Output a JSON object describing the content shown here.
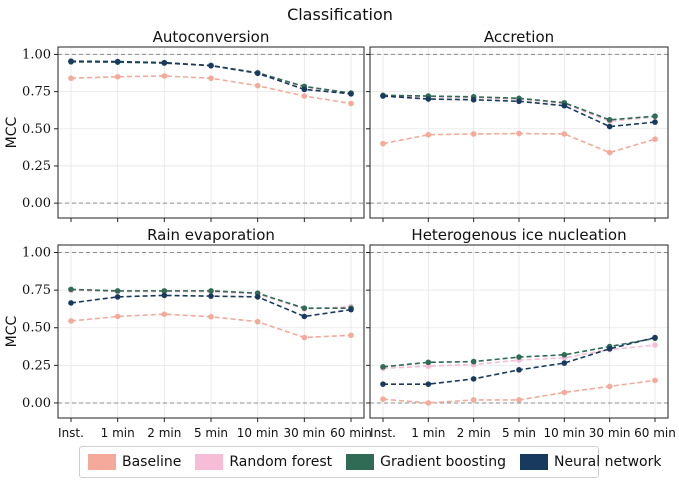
{
  "figure": {
    "title": "Classification"
  },
  "colors": {
    "Baseline": "#f4a99a",
    "Random forest": "#f7bcd6",
    "Gradient boosting": "#2f6b55",
    "Neural network": "#173a5e"
  },
  "legend": [
    {
      "label": "Baseline",
      "color": "#f4a99a"
    },
    {
      "label": "Random forest",
      "color": "#f7bcd6"
    },
    {
      "label": "Gradient boosting",
      "color": "#2f6b55"
    },
    {
      "label": "Neural network",
      "color": "#173a5e"
    }
  ],
  "chart_data": [
    {
      "type": "line",
      "title": "Autoconversion",
      "ylabel": "MCC",
      "ylim": [
        -0.1,
        1.05
      ],
      "yticks": [
        "1.00",
        "0.75",
        "0.50",
        "0.25",
        "0.00"
      ],
      "reference_lines": [
        0,
        1
      ],
      "categories": [
        "Inst.",
        "1 min",
        "2 min",
        "5 min",
        "10 min",
        "30 min",
        "60 min"
      ],
      "grid": true,
      "series": [
        {
          "name": "Baseline",
          "values": [
            0.84,
            0.85,
            0.855,
            0.84,
            0.79,
            0.72,
            0.67
          ]
        },
        {
          "name": "Random forest",
          "values": [
            0.95,
            0.95,
            0.94,
            0.925,
            0.88,
            0.78,
            0.74
          ]
        },
        {
          "name": "Gradient boosting",
          "values": [
            0.95,
            0.948,
            0.942,
            0.925,
            0.876,
            0.785,
            0.74
          ]
        },
        {
          "name": "Neural network",
          "values": [
            0.955,
            0.952,
            0.945,
            0.925,
            0.873,
            0.765,
            0.735
          ]
        }
      ]
    },
    {
      "type": "line",
      "title": "Accretion",
      "ylabel": "",
      "ylim": [
        -0.1,
        1.05
      ],
      "yticks": [],
      "reference_lines": [
        0,
        1
      ],
      "categories": [
        "Inst.",
        "1 min",
        "2 min",
        "5 min",
        "10 min",
        "30 min",
        "60 min"
      ],
      "grid": true,
      "series": [
        {
          "name": "Baseline",
          "values": [
            0.4,
            0.46,
            0.465,
            0.468,
            0.465,
            0.34,
            0.43
          ]
        },
        {
          "name": "Random forest",
          "values": [
            0.72,
            0.715,
            0.71,
            0.7,
            0.67,
            0.55,
            0.58
          ]
        },
        {
          "name": "Gradient boosting",
          "values": [
            0.725,
            0.72,
            0.715,
            0.705,
            0.675,
            0.56,
            0.585
          ]
        },
        {
          "name": "Neural network",
          "values": [
            0.72,
            0.7,
            0.695,
            0.685,
            0.655,
            0.515,
            0.545
          ]
        }
      ]
    },
    {
      "type": "line",
      "title": "Rain evaporation",
      "ylabel": "MCC",
      "ylim": [
        -0.1,
        1.05
      ],
      "yticks": [
        "1.00",
        "0.75",
        "0.50",
        "0.25",
        "0.00"
      ],
      "reference_lines": [
        0,
        1
      ],
      "categories": [
        "Inst.",
        "1 min",
        "2 min",
        "5 min",
        "10 min",
        "30 min",
        "60 min"
      ],
      "grid": true,
      "series": [
        {
          "name": "Baseline",
          "values": [
            0.545,
            0.575,
            0.59,
            0.573,
            0.54,
            0.435,
            0.45
          ]
        },
        {
          "name": "Random forest",
          "values": [
            0.75,
            0.74,
            0.74,
            0.74,
            0.725,
            0.625,
            0.64
          ]
        },
        {
          "name": "Gradient boosting",
          "values": [
            0.755,
            0.745,
            0.745,
            0.745,
            0.73,
            0.63,
            0.63
          ]
        },
        {
          "name": "Neural network",
          "values": [
            0.665,
            0.705,
            0.715,
            0.71,
            0.705,
            0.575,
            0.62
          ]
        }
      ]
    },
    {
      "type": "line",
      "title": "Heterogenous ice nucleation",
      "ylabel": "",
      "ylim": [
        -0.1,
        1.05
      ],
      "yticks": [],
      "reference_lines": [
        0,
        1
      ],
      "categories": [
        "Inst.",
        "1 min",
        "2 min",
        "5 min",
        "10 min",
        "30 min",
        "60 min"
      ],
      "grid": true,
      "series": [
        {
          "name": "Baseline",
          "values": [
            0.025,
            0.0,
            0.02,
            0.02,
            0.07,
            0.11,
            0.15
          ]
        },
        {
          "name": "Random forest",
          "values": [
            0.23,
            0.245,
            0.255,
            0.285,
            0.3,
            0.355,
            0.385
          ]
        },
        {
          "name": "Gradient boosting",
          "values": [
            0.24,
            0.27,
            0.275,
            0.305,
            0.32,
            0.375,
            0.43
          ]
        },
        {
          "name": "Neural network",
          "values": [
            0.125,
            0.125,
            0.16,
            0.22,
            0.265,
            0.36,
            0.435
          ]
        }
      ]
    }
  ]
}
